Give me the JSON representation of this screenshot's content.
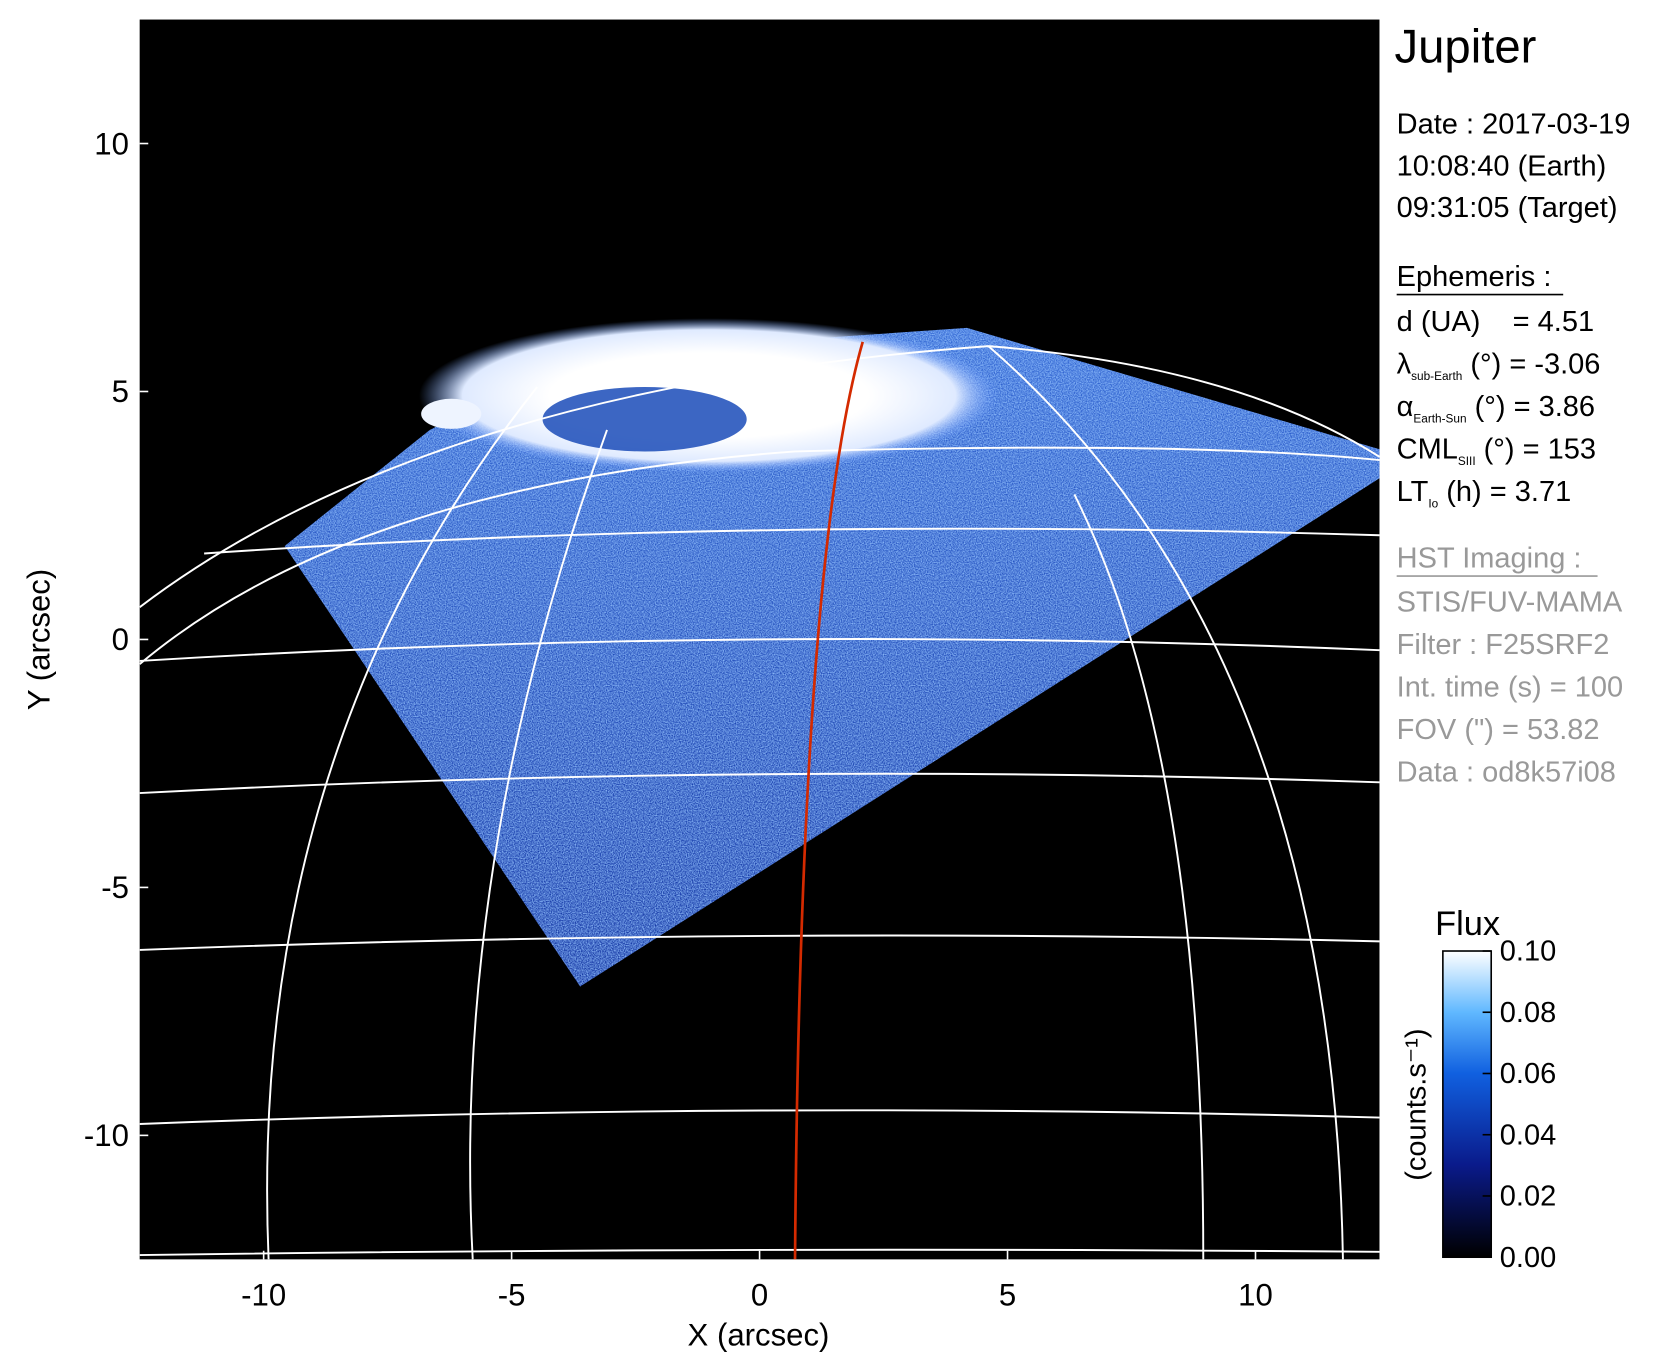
{
  "chart_data": {
    "type": "image",
    "title": "Jupiter",
    "x_label": "X (arcsec)",
    "y_label": "Y (arcsec)",
    "xlim": [
      -12.5,
      12.5
    ],
    "ylim": [
      -12.5,
      12.5
    ],
    "xticks": [
      -10,
      -5,
      0,
      5,
      10
    ],
    "yticks": [
      -10,
      -5,
      0,
      5,
      10
    ],
    "date_lines": [
      "Date : 2017-03-19",
      "10:08:40 (Earth)",
      "09:31:05 (Target)"
    ],
    "ephemeris_title": "Ephemeris :",
    "ephemeris": [
      {
        "text": "d (UA)    = 4.51"
      },
      {
        "symbol": "λ",
        "sub": "sub-Earth",
        "text": " (°) = -3.06"
      },
      {
        "symbol": "α",
        "sub": "Earth-Sun",
        "text": " (°) = 3.86"
      },
      {
        "symbol": "CML",
        "sub": "SIII",
        "text": " (°) = 153"
      },
      {
        "symbol": "LT",
        "sub": "Io",
        "text": " (h) = 3.71"
      }
    ],
    "imaging_title": "HST Imaging :",
    "imaging": [
      "STIS/FUV-MAMA",
      "Filter : F25SRF2",
      "Int. time (s) = 100",
      "FOV (\") = 53.82",
      "Data : od8k57i08"
    ],
    "colorbar": {
      "title": "Flux",
      "label": "(counts.s⁻¹)",
      "lim": [
        0,
        0.1
      ],
      "ticks": [
        {
          "value": 0,
          "label": "0.00"
        },
        {
          "value": 0.02,
          "label": "0.02"
        },
        {
          "value": 0.04,
          "label": "0.04"
        },
        {
          "value": 0.06,
          "label": "0.06"
        },
        {
          "value": 0.08,
          "label": "0.08"
        },
        {
          "value": 0.1,
          "label": "0.10"
        }
      ]
    }
  }
}
